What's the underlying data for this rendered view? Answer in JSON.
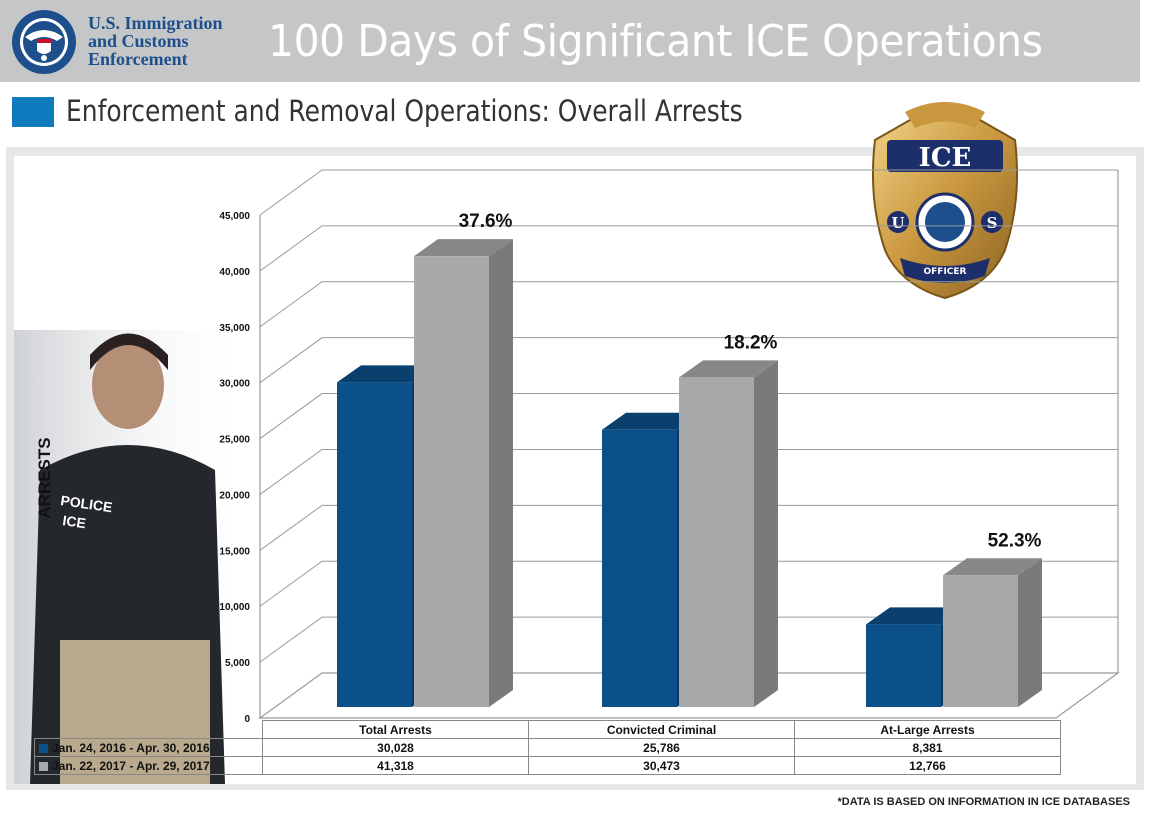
{
  "header": {
    "agency_line1": "U.S. Immigration",
    "agency_line2": "and Customs",
    "agency_line3": "Enforcement",
    "title": "100 Days of Significant ICE Operations"
  },
  "section": {
    "title": "Enforcement and Removal Operations: Overall Arrests"
  },
  "badge": {
    "top_text": "ICE",
    "left_letter": "U",
    "right_letter": "S",
    "bottom_text": "OFFICER"
  },
  "photo": {
    "vest_line1": "POLICE",
    "vest_line2": "ICE"
  },
  "chart_data": {
    "type": "bar",
    "ylabel": "ARRESTS",
    "ylim": [
      0,
      45000
    ],
    "yticks": [
      "0",
      "5,000",
      "10,000",
      "15,000",
      "20,000",
      "25,000",
      "30,000",
      "35,000",
      "40,000",
      "45,000"
    ],
    "ytick_values": [
      0,
      5000,
      10000,
      15000,
      20000,
      25000,
      30000,
      35000,
      40000,
      45000
    ],
    "categories": [
      "Total Arrests",
      "Convicted Criminal",
      "At-Large Arrests"
    ],
    "series": [
      {
        "name": "Jan. 24, 2016 - Apr. 30, 2016",
        "color": "#0b5089",
        "values": [
          30028,
          25786,
          8381
        ],
        "labels": [
          "30,028",
          "25,786",
          "8,381"
        ]
      },
      {
        "name": "Jan. 22, 2017 - Apr. 29, 2017",
        "color": "#a8a9ab",
        "values": [
          41318,
          30473,
          12766
        ],
        "labels": [
          "41,318",
          "30,473",
          "12,766"
        ]
      }
    ],
    "annotations": [
      "37.6%",
      "18.2%",
      "52.3%"
    ],
    "grid": true
  },
  "footnote": "*DATA IS BASED ON INFORMATION IN ICE DATABASES"
}
